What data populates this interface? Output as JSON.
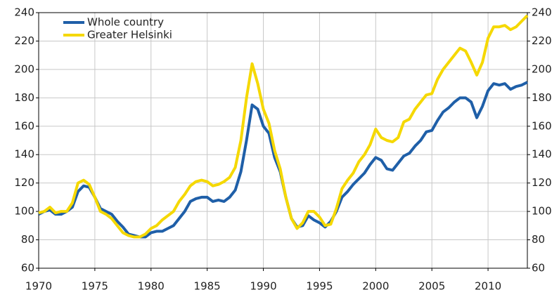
{
  "chart_data": {
    "type": "line",
    "x": [
      1970,
      1970.5,
      1971,
      1971.5,
      1972,
      1972.5,
      1973,
      1973.5,
      1974,
      1974.5,
      1975,
      1975.5,
      1976,
      1976.5,
      1977,
      1977.5,
      1978,
      1978.5,
      1979,
      1979.5,
      1980,
      1980.5,
      1981,
      1981.5,
      1982,
      1982.5,
      1983,
      1983.5,
      1984,
      1984.5,
      1985,
      1985.5,
      1986,
      1986.5,
      1987,
      1987.5,
      1988,
      1988.5,
      1989,
      1989.5,
      1990,
      1990.5,
      1991,
      1991.5,
      1992,
      1992.5,
      1993,
      1993.5,
      1994,
      1994.5,
      1995,
      1995.5,
      1996,
      1996.5,
      1997,
      1997.5,
      1998,
      1998.5,
      1999,
      1999.5,
      2000,
      2000.5,
      2001,
      2001.5,
      2002,
      2002.5,
      2003,
      2003.5,
      2004,
      2004.5,
      2005,
      2005.5,
      2006,
      2006.5,
      2007,
      2007.5,
      2008,
      2008.5,
      2009,
      2009.5,
      2010,
      2010.5,
      2011,
      2011.5,
      2012,
      2012.5,
      2013,
      2013.5
    ],
    "series": [
      {
        "name": "Whole country",
        "color": "#1f5fa8",
        "values": [
          98,
          100,
          101,
          98,
          98,
          100,
          103,
          114,
          118,
          117,
          110,
          102,
          100,
          98,
          93,
          89,
          84,
          83,
          82,
          82,
          85,
          86,
          86,
          88,
          90,
          95,
          100,
          107,
          109,
          110,
          110,
          107,
          108,
          107,
          110,
          115,
          128,
          150,
          175,
          172,
          160,
          155,
          138,
          128,
          110,
          95,
          89,
          90,
          97,
          94,
          92,
          89,
          93,
          100,
          110,
          114,
          119,
          123,
          127,
          133,
          138,
          136,
          130,
          129,
          134,
          139,
          141,
          146,
          150,
          156,
          157,
          164,
          170,
          173,
          177,
          180,
          180,
          177,
          166,
          174,
          185,
          190,
          189,
          190,
          186,
          188,
          189,
          191
        ]
      },
      {
        "name": "Greater Helsinki",
        "color": "#f5d800",
        "values": [
          99,
          100,
          103,
          99,
          100,
          100,
          106,
          120,
          122,
          119,
          110,
          100,
          98,
          95,
          90,
          85,
          83,
          82,
          82,
          84,
          88,
          90,
          94,
          97,
          100,
          107,
          112,
          118,
          121,
          122,
          121,
          118,
          119,
          121,
          124,
          131,
          150,
          180,
          204,
          190,
          172,
          162,
          143,
          130,
          110,
          95,
          88,
          92,
          100,
          100,
          96,
          90,
          91,
          102,
          116,
          122,
          127,
          135,
          140,
          147,
          158,
          152,
          150,
          149,
          152,
          163,
          165,
          172,
          177,
          182,
          183,
          193,
          200,
          205,
          210,
          215,
          213,
          205,
          196,
          205,
          222,
          230,
          230,
          231,
          228,
          230,
          234,
          238
        ]
      }
    ],
    "xlim": [
      1970,
      2013.5
    ],
    "xticks": [
      1970,
      1975,
      1980,
      1985,
      1990,
      1995,
      2000,
      2005,
      2010
    ],
    "ylim": [
      60,
      240
    ],
    "yticks": [
      60,
      80,
      100,
      120,
      140,
      160,
      180,
      200,
      220,
      240
    ],
    "y2lim": [
      60,
      240
    ],
    "y2ticks": [
      60,
      80,
      100,
      120,
      140,
      160,
      180,
      200,
      220,
      240
    ],
    "grid": true,
    "legend": "top-left"
  }
}
